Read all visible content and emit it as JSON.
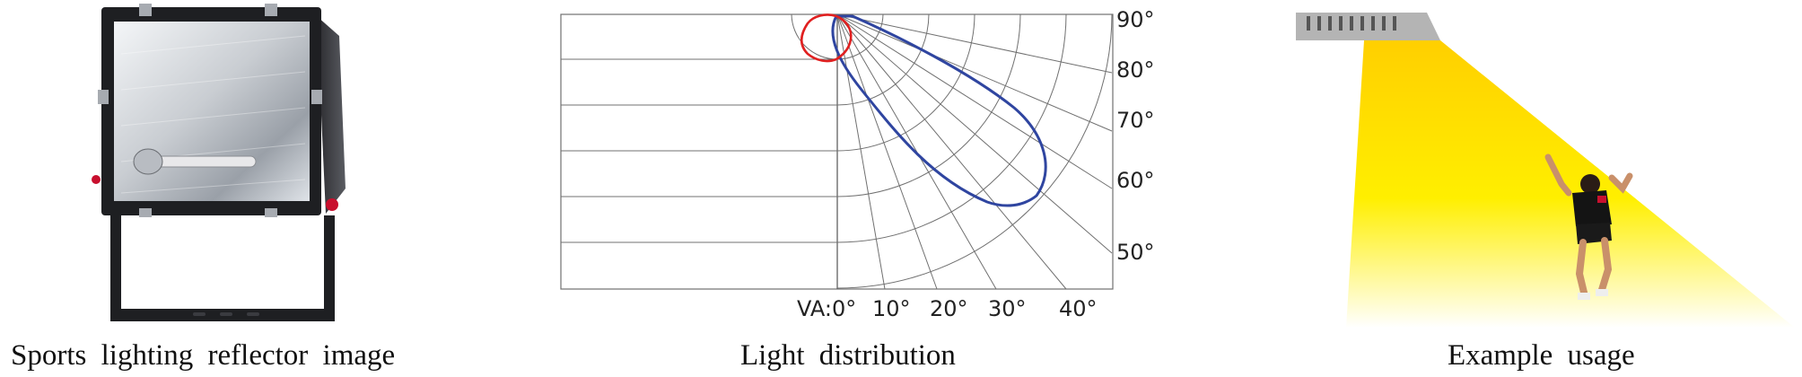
{
  "captions": {
    "lamp": "Sports lighting reflector image",
    "distribution": "Light distribution",
    "usage": "Example usage"
  },
  "distribution": {
    "vertical_angle_labels": [
      "90°",
      "80°",
      "70°",
      "60°",
      "50°"
    ],
    "horizontal_axis_labels": [
      "VA:0°",
      "10°",
      "20°",
      "30°",
      "40°"
    ],
    "curve_colors": {
      "main": "#2f45a0",
      "secondary": "#e02020"
    }
  },
  "usage": {
    "beam_color": "#ffe600",
    "fixture_color": "#b4b4b4"
  }
}
